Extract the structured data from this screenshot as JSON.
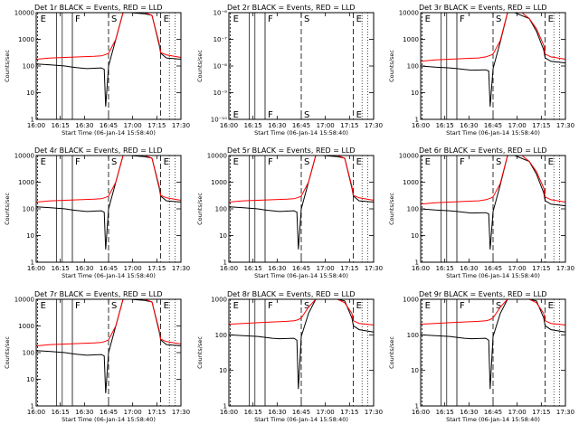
{
  "chart_data": [
    {
      "type": "line",
      "title": "Det 1r BLACK = Events, RED = LLD",
      "xlabel": "Start Time (06-Jan-14 15:58:40)",
      "ylabel": "Counts/sec",
      "y_scale": "log",
      "ylim": [
        1,
        10000
      ],
      "xlim": [
        0,
        100
      ],
      "x_ticks": [
        "16:00",
        "16:15",
        "16:30",
        "16:45",
        "17:00",
        "17:15",
        "17:30"
      ],
      "y_ticks": [
        "1",
        "10",
        "100",
        "1000",
        "10000"
      ],
      "markers": [
        {
          "label": "E",
          "x": 1
        },
        {
          "label": "F",
          "x": 25
        },
        {
          "label": "S",
          "x": 50
        },
        {
          "label": "E",
          "x": 86
        }
      ],
      "series": [
        {
          "name": "BLACK = Events",
          "color": "#000000",
          "x": [
            0,
            10,
            20,
            25,
            30,
            35,
            45,
            47,
            48,
            50,
            55,
            60,
            65,
            75,
            80,
            85,
            86,
            90,
            100
          ],
          "y": [
            120,
            110,
            100,
            90,
            85,
            80,
            85,
            75,
            3,
            100,
            1000,
            10000,
            10000,
            9000,
            8000,
            600,
            300,
            200,
            180
          ]
        },
        {
          "name": "RED = LLD",
          "color": "#ff0000",
          "x": [
            0,
            10,
            20,
            30,
            40,
            45,
            47,
            48,
            50,
            55,
            60,
            65,
            70,
            75,
            80,
            85,
            86,
            90,
            100
          ],
          "y": [
            180,
            200,
            210,
            220,
            230,
            240,
            260,
            270,
            300,
            1000,
            10000,
            10000,
            10000,
            10000,
            8000,
            700,
            320,
            260,
            210
          ]
        }
      ]
    },
    {
      "type": "line",
      "title": "Det 2r BLACK = Events, RED = LLD",
      "xlabel": "Start Time (06-Jan-14 15:58:40)",
      "ylabel": "Counts/sec",
      "y_scale": "log",
      "ylim": [
        1e-10,
        1e-06
      ],
      "xlim": [
        0,
        100
      ],
      "x_ticks": [
        "16:00",
        "16:15",
        "16:30",
        "16:45",
        "17:00",
        "17:15",
        "17:30"
      ],
      "y_ticks": [
        "10⁻¹⁰",
        "10⁻⁹",
        "10⁻⁸",
        "10⁻⁷",
        "10⁻⁶"
      ],
      "markers": [
        {
          "label": "E",
          "x": 1
        },
        {
          "label": "F",
          "x": 25
        },
        {
          "label": "S",
          "x": 50
        },
        {
          "label": "E",
          "x": 86
        }
      ],
      "series": []
    },
    {
      "type": "line",
      "title": "Det 3r BLACK = Events, RED = LLD",
      "xlabel": "Start Time (06-Jan-14 15:58:40)",
      "ylabel": "Counts/sec",
      "y_scale": "log",
      "ylim": [
        1,
        10000
      ],
      "xlim": [
        0,
        100
      ],
      "x_ticks": [
        "16:00",
        "16:15",
        "16:30",
        "16:45",
        "17:00",
        "17:15",
        "17:30"
      ],
      "y_ticks": [
        "1",
        "10",
        "100",
        "1000",
        "10000"
      ],
      "markers": [
        {
          "label": "E",
          "x": 1
        },
        {
          "label": "F",
          "x": 25
        },
        {
          "label": "S",
          "x": 50
        },
        {
          "label": "E",
          "x": 86
        }
      ],
      "series": [
        {
          "name": "BLACK = Events",
          "color": "#000000",
          "x": [
            0,
            10,
            20,
            25,
            30,
            35,
            45,
            47,
            48,
            50,
            55,
            60,
            65,
            75,
            80,
            85,
            86,
            90,
            100
          ],
          "y": [
            100,
            90,
            85,
            80,
            75,
            70,
            72,
            65,
            3,
            80,
            800,
            10000,
            10000,
            6000,
            2000,
            400,
            200,
            150,
            130
          ]
        },
        {
          "name": "RED = LLD",
          "color": "#ff0000",
          "x": [
            0,
            10,
            20,
            30,
            40,
            45,
            47,
            48,
            50,
            55,
            60,
            65,
            70,
            75,
            80,
            85,
            86,
            90,
            100
          ],
          "y": [
            150,
            170,
            180,
            190,
            200,
            220,
            240,
            250,
            280,
            900,
            10000,
            10000,
            10000,
            6000,
            2500,
            600,
            280,
            220,
            180
          ]
        }
      ]
    },
    {
      "type": "line",
      "title": "Det 4r BLACK = Events, RED = LLD",
      "xlabel": "Start Time (06-Jan-14 15:58:40)",
      "ylabel": "Counts/sec",
      "y_scale": "log",
      "ylim": [
        1,
        10000
      ],
      "xlim": [
        0,
        100
      ],
      "x_ticks": [
        "16:00",
        "16:15",
        "16:30",
        "16:45",
        "17:00",
        "17:15",
        "17:30"
      ],
      "y_ticks": [
        "1",
        "10",
        "100",
        "1000",
        "10000"
      ],
      "markers": [
        {
          "label": "E",
          "x": 1
        },
        {
          "label": "F",
          "x": 25
        },
        {
          "label": "S",
          "x": 50
        },
        {
          "label": "E",
          "x": 86
        }
      ],
      "series": [
        {
          "name": "BLACK = Events",
          "color": "#000000",
          "x": [
            0,
            10,
            20,
            25,
            30,
            35,
            45,
            47,
            48,
            50,
            55,
            60,
            65,
            75,
            80,
            85,
            86,
            90,
            100
          ],
          "y": [
            120,
            110,
            100,
            90,
            85,
            80,
            85,
            75,
            3,
            100,
            1000,
            10000,
            10000,
            9000,
            8000,
            600,
            300,
            200,
            180
          ]
        },
        {
          "name": "RED = LLD",
          "color": "#ff0000",
          "x": [
            0,
            10,
            20,
            30,
            40,
            45,
            47,
            48,
            50,
            55,
            60,
            65,
            70,
            75,
            80,
            85,
            86,
            90,
            100
          ],
          "y": [
            180,
            200,
            210,
            220,
            230,
            240,
            260,
            270,
            300,
            1000,
            10000,
            10000,
            10000,
            10000,
            8000,
            700,
            320,
            260,
            210
          ]
        }
      ]
    },
    {
      "type": "line",
      "title": "Det 5r BLACK = Events, RED = LLD",
      "xlabel": "Start Time (06-Jan-14 15:58:40)",
      "ylabel": "Counts/sec",
      "y_scale": "log",
      "ylim": [
        1,
        10000
      ],
      "xlim": [
        0,
        100
      ],
      "x_ticks": [
        "16:00",
        "16:15",
        "16:30",
        "16:45",
        "17:00",
        "17:15",
        "17:30"
      ],
      "y_ticks": [
        "1",
        "10",
        "100",
        "1000",
        "10000"
      ],
      "markers": [
        {
          "label": "E",
          "x": 1
        },
        {
          "label": "F",
          "x": 25
        },
        {
          "label": "S",
          "x": 50
        },
        {
          "label": "E",
          "x": 86
        }
      ],
      "series": [
        {
          "name": "BLACK = Events",
          "color": "#000000",
          "x": [
            0,
            10,
            20,
            25,
            30,
            35,
            45,
            47,
            48,
            50,
            55,
            60,
            65,
            75,
            80,
            85,
            86,
            90,
            100
          ],
          "y": [
            120,
            110,
            100,
            90,
            85,
            80,
            85,
            75,
            3,
            100,
            1000,
            10000,
            10000,
            9000,
            8000,
            600,
            300,
            200,
            180
          ]
        },
        {
          "name": "RED = LLD",
          "color": "#ff0000",
          "x": [
            0,
            10,
            20,
            30,
            40,
            45,
            47,
            48,
            50,
            55,
            60,
            65,
            70,
            75,
            80,
            85,
            86,
            90,
            100
          ],
          "y": [
            180,
            200,
            210,
            220,
            230,
            240,
            260,
            270,
            300,
            1000,
            10000,
            10000,
            10000,
            10000,
            8000,
            700,
            320,
            260,
            210
          ]
        }
      ]
    },
    {
      "type": "line",
      "title": "Det 6r BLACK = Events, RED = LLD",
      "xlabel": "Start Time (06-Jan-14 15:58:40)",
      "ylabel": "Counts/sec",
      "y_scale": "log",
      "ylim": [
        1,
        10000
      ],
      "xlim": [
        0,
        100
      ],
      "x_ticks": [
        "16:00",
        "16:15",
        "16:30",
        "16:45",
        "17:00",
        "17:15",
        "17:30"
      ],
      "y_ticks": [
        "1",
        "10",
        "100",
        "1000",
        "10000"
      ],
      "markers": [
        {
          "label": "E",
          "x": 1
        },
        {
          "label": "F",
          "x": 25
        },
        {
          "label": "S",
          "x": 50
        },
        {
          "label": "E",
          "x": 86
        }
      ],
      "series": [
        {
          "name": "BLACK = Events",
          "color": "#000000",
          "x": [
            0,
            10,
            20,
            25,
            30,
            35,
            45,
            47,
            48,
            50,
            55,
            60,
            65,
            75,
            80,
            85,
            86,
            90,
            100
          ],
          "y": [
            100,
            90,
            85,
            80,
            75,
            70,
            72,
            65,
            3,
            80,
            800,
            10000,
            10000,
            6000,
            2000,
            400,
            200,
            150,
            130
          ]
        },
        {
          "name": "RED = LLD",
          "color": "#ff0000",
          "x": [
            0,
            10,
            20,
            30,
            40,
            45,
            47,
            48,
            50,
            55,
            60,
            65,
            70,
            75,
            80,
            85,
            86,
            90,
            100
          ],
          "y": [
            150,
            170,
            180,
            190,
            200,
            220,
            240,
            250,
            280,
            900,
            10000,
            10000,
            10000,
            6000,
            2500,
            600,
            280,
            220,
            180
          ]
        }
      ]
    },
    {
      "type": "line",
      "title": "Det 7r BLACK = Events, RED = LLD",
      "xlabel": "Start Time (06-Jan-14 15:58:40)",
      "ylabel": "Counts/sec",
      "y_scale": "log",
      "ylim": [
        1,
        10000
      ],
      "xlim": [
        0,
        100
      ],
      "x_ticks": [
        "16:00",
        "16:15",
        "16:30",
        "16:45",
        "17:00",
        "17:15",
        "17:30"
      ],
      "y_ticks": [
        "1",
        "10",
        "100",
        "1000",
        "10000"
      ],
      "markers": [
        {
          "label": "E",
          "x": 1
        },
        {
          "label": "F",
          "x": 25
        },
        {
          "label": "S",
          "x": 50
        },
        {
          "label": "E",
          "x": 86
        }
      ],
      "series": [
        {
          "name": "BLACK = Events",
          "color": "#000000",
          "x": [
            0,
            10,
            20,
            25,
            30,
            35,
            45,
            47,
            48,
            50,
            55,
            60,
            65,
            75,
            80,
            85,
            86,
            90,
            100
          ],
          "y": [
            120,
            110,
            100,
            90,
            85,
            80,
            85,
            75,
            3,
            100,
            1000,
            10000,
            10000,
            9000,
            8000,
            600,
            300,
            200,
            180
          ]
        },
        {
          "name": "RED = LLD",
          "color": "#ff0000",
          "x": [
            0,
            10,
            20,
            30,
            40,
            45,
            47,
            48,
            50,
            55,
            60,
            65,
            70,
            75,
            80,
            85,
            86,
            90,
            100
          ],
          "y": [
            180,
            200,
            210,
            220,
            230,
            240,
            260,
            270,
            300,
            1000,
            10000,
            10000,
            10000,
            10000,
            8000,
            700,
            320,
            260,
            210
          ]
        }
      ]
    },
    {
      "type": "line",
      "title": "Det 8r BLACK = Events, RED = LLD",
      "xlabel": "Start Time (06-Jan-14 15:58:40)",
      "ylabel": "Counts/sec",
      "y_scale": "log",
      "ylim": [
        1,
        1000
      ],
      "xlim": [
        0,
        100
      ],
      "x_ticks": [
        "16:00",
        "16:15",
        "16:30",
        "16:45",
        "17:00",
        "17:15",
        "17:30"
      ],
      "y_ticks": [
        "1",
        "10",
        "100",
        "1000"
      ],
      "markers": [
        {
          "label": "E",
          "x": 1
        },
        {
          "label": "F",
          "x": 25
        },
        {
          "label": "S",
          "x": 50
        },
        {
          "label": "E",
          "x": 86
        }
      ],
      "series": [
        {
          "name": "BLACK = Events",
          "color": "#000000",
          "x": [
            0,
            10,
            20,
            25,
            30,
            35,
            45,
            47,
            48,
            50,
            55,
            60,
            65,
            75,
            80,
            85,
            86,
            90,
            100
          ],
          "y": [
            100,
            95,
            90,
            85,
            80,
            78,
            80,
            70,
            3,
            90,
            400,
            1000,
            1000,
            1000,
            900,
            300,
            180,
            140,
            120
          ]
        },
        {
          "name": "RED = LLD",
          "color": "#ff0000",
          "x": [
            0,
            10,
            20,
            30,
            40,
            45,
            47,
            48,
            50,
            55,
            60,
            65,
            70,
            75,
            80,
            85,
            86,
            90,
            100
          ],
          "y": [
            200,
            210,
            220,
            230,
            240,
            250,
            260,
            270,
            300,
            600,
            1000,
            1000,
            1000,
            1000,
            800,
            400,
            250,
            210,
            190
          ]
        }
      ]
    },
    {
      "type": "line",
      "title": "Det 9r BLACK = Events, RED = LLD",
      "xlabel": "Start Time (06-Jan-14 15:58:40)",
      "ylabel": "Counts/sec",
      "y_scale": "log",
      "ylim": [
        1,
        1000
      ],
      "xlim": [
        0,
        100
      ],
      "x_ticks": [
        "16:00",
        "16:15",
        "16:30",
        "16:45",
        "17:00",
        "17:15",
        "17:30"
      ],
      "y_ticks": [
        "1",
        "10",
        "100",
        "1000"
      ],
      "markers": [
        {
          "label": "E",
          "x": 1
        },
        {
          "label": "F",
          "x": 25
        },
        {
          "label": "S",
          "x": 50
        },
        {
          "label": "E",
          "x": 86
        }
      ],
      "series": [
        {
          "name": "BLACK = Events",
          "color": "#000000",
          "x": [
            0,
            10,
            20,
            25,
            30,
            35,
            45,
            47,
            48,
            50,
            55,
            60,
            65,
            75,
            80,
            85,
            86,
            90,
            100
          ],
          "y": [
            100,
            95,
            90,
            85,
            80,
            78,
            80,
            70,
            3,
            90,
            400,
            1000,
            1000,
            1000,
            900,
            300,
            180,
            140,
            120
          ]
        },
        {
          "name": "RED = LLD",
          "color": "#ff0000",
          "x": [
            0,
            10,
            20,
            30,
            40,
            45,
            47,
            48,
            50,
            55,
            60,
            65,
            70,
            75,
            80,
            85,
            86,
            90,
            100
          ],
          "y": [
            200,
            210,
            220,
            230,
            240,
            250,
            260,
            270,
            300,
            600,
            1000,
            1000,
            1000,
            1000,
            800,
            400,
            250,
            210,
            190
          ]
        }
      ]
    }
  ]
}
